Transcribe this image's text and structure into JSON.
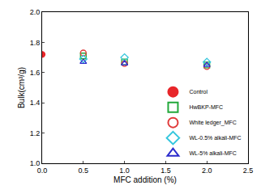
{
  "chart_data": {
    "type": "scatter",
    "x_label": "MFC addition (%)",
    "y_label": "Bulk(cm³/g)",
    "xlim": [
      0,
      2.5
    ],
    "xticks": [
      {
        "value": 0,
        "label": "0.0"
      },
      0.5,
      {
        "value": 1,
        "label": "1.0"
      },
      1.5,
      {
        "value": 2,
        "label": "2.0"
      },
      2.5
    ],
    "ylim": [
      1,
      2
    ],
    "yticks": [
      {
        "value": 1,
        "label": "1.0"
      },
      1.2,
      1.4,
      1.6,
      1.8,
      {
        "value": 2,
        "label": "2.0"
      }
    ],
    "grid": false,
    "legend": "right",
    "series": [
      {
        "name": "Control",
        "color": "#e8262a",
        "marker": "circle",
        "x": [
          0
        ],
        "values": [
          1.72
        ]
      },
      {
        "name": "HwBKP-MFC",
        "color": "#22a83a",
        "marker": "square-open",
        "x": [
          0.5,
          1,
          2
        ],
        "values": [
          1.71,
          1.67,
          1.65
        ]
      },
      {
        "name": "White ledger_MFC",
        "color": "#e03a3a",
        "marker": "circle-open",
        "x": [
          0.5,
          1,
          2
        ],
        "values": [
          1.73,
          1.66,
          1.64
        ]
      },
      {
        "name": "WL-0.5% alkali-MFC",
        "color": "#33c6dd",
        "marker": "diamond-open",
        "x": [
          0.5,
          1,
          2
        ],
        "values": [
          1.69,
          1.7,
          1.67
        ]
      },
      {
        "name": "WL-5% alkali-MFC",
        "color": "#2a2acc",
        "marker": "triangle-up-open",
        "x": [
          0.5,
          1,
          2
        ],
        "values": [
          1.67,
          1.66,
          1.65
        ]
      }
    ]
  }
}
